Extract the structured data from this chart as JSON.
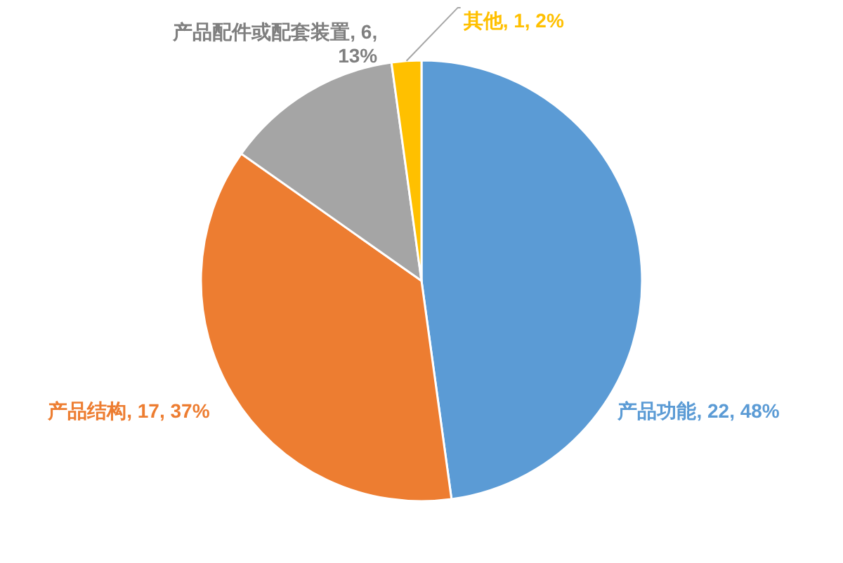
{
  "chart_data": {
    "type": "pie",
    "categories": [
      "产品功能",
      "产品结构",
      "产品配件或配套装置",
      "其他"
    ],
    "values": [
      22,
      17,
      6,
      1
    ],
    "value_labels": [
      "22, 48%",
      "17, 37%",
      "6, 13%",
      "1, 2%"
    ],
    "colors": [
      "#5b9bd5",
      "#ed7d31",
      "#a5a5a5",
      "#ffc000"
    ]
  }
}
